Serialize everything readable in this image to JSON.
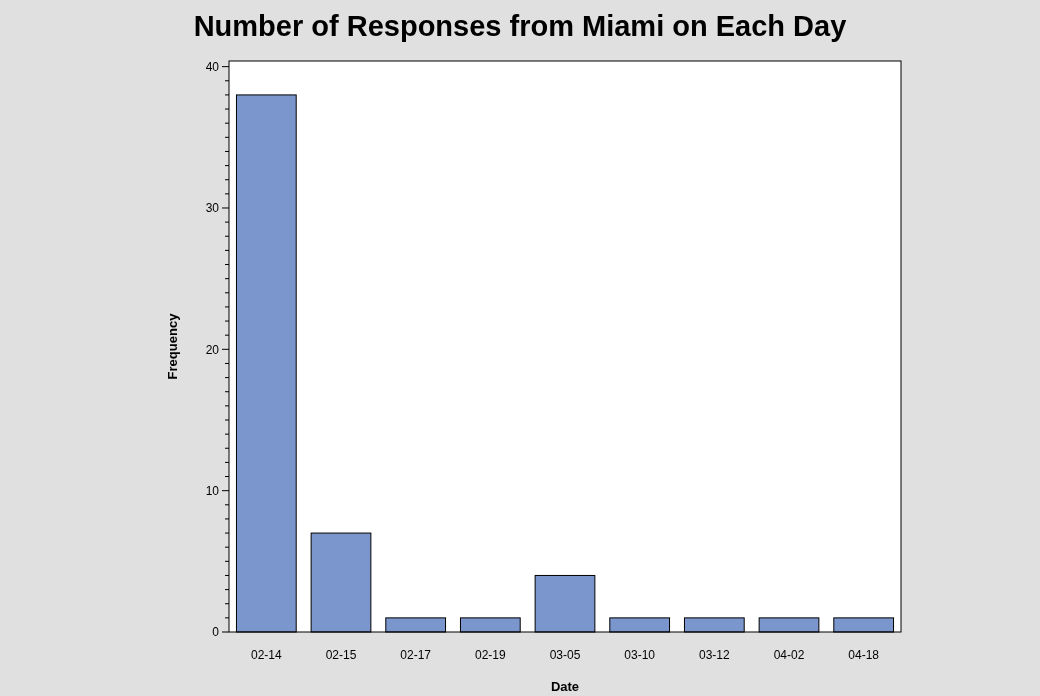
{
  "chart_data": {
    "type": "bar",
    "title": "Number of Responses from Miami on Each Day",
    "xlabel": "Date",
    "ylabel": "Frequency",
    "categories": [
      "02-14",
      "02-15",
      "02-17",
      "02-19",
      "03-05",
      "03-10",
      "03-12",
      "04-02",
      "04-18"
    ],
    "values": [
      38,
      7,
      1,
      1,
      4,
      1,
      1,
      1,
      1
    ],
    "color": "#7b96cc",
    "ylim": [
      0,
      40.4
    ],
    "yticks": [
      0,
      {
        "value": 1,
        "label": null
      },
      {
        "value": 2,
        "label": null
      },
      {
        "value": 3,
        "label": null
      },
      {
        "value": 4,
        "label": null
      },
      {
        "value": 5,
        "label": null
      },
      {
        "value": 6,
        "label": null
      },
      {
        "value": 7,
        "label": null
      },
      {
        "value": 8,
        "label": null
      },
      {
        "value": 9,
        "label": null
      },
      10,
      {
        "value": 11,
        "label": null
      },
      {
        "value": 12,
        "label": null
      },
      {
        "value": 13,
        "label": null
      },
      {
        "value": 14,
        "label": null
      },
      {
        "value": 15,
        "label": null
      },
      {
        "value": 16,
        "label": null
      },
      {
        "value": 17,
        "label": null
      },
      {
        "value": 18,
        "label": null
      },
      {
        "value": 19,
        "label": null
      },
      20,
      {
        "value": 21,
        "label": null
      },
      {
        "value": 22,
        "label": null
      },
      {
        "value": 23,
        "label": null
      },
      {
        "value": 24,
        "label": null
      },
      {
        "value": 25,
        "label": null
      },
      {
        "value": 26,
        "label": null
      },
      {
        "value": 27,
        "label": null
      },
      {
        "value": 28,
        "label": null
      },
      {
        "value": 29,
        "label": null
      },
      30,
      {
        "value": 31,
        "label": null
      },
      {
        "value": 32,
        "label": null
      },
      {
        "value": 33,
        "label": null
      },
      {
        "value": 34,
        "label": null
      },
      {
        "value": 35,
        "label": null
      },
      {
        "value": 36,
        "label": null
      },
      {
        "value": 37,
        "label": null
      },
      {
        "value": 38,
        "label": null
      },
      {
        "value": 39,
        "label": null
      },
      40
    ]
  }
}
